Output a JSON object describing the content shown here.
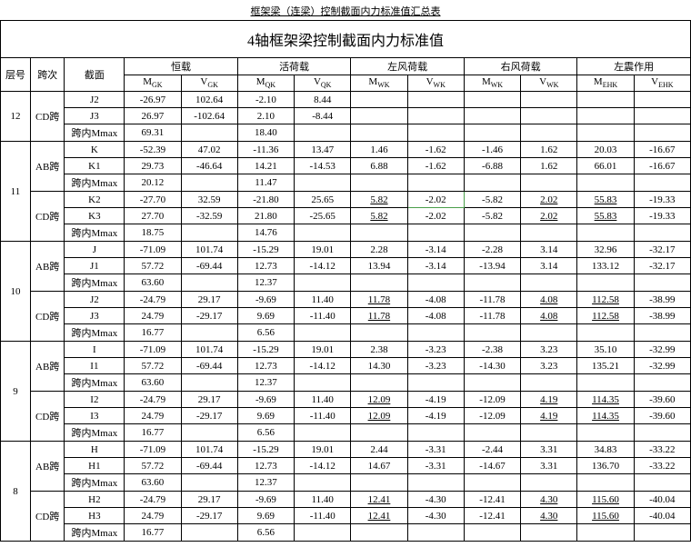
{
  "page_title": "框架梁（连梁）控制截面内力标准值汇总表",
  "main_title": "4轴框架梁控制截面内力标准值",
  "headers": {
    "level": "层号",
    "span": "跨次",
    "section": "截面",
    "groups": [
      "恒载",
      "活荷载",
      "左风荷载",
      "右风荷载",
      "左震作用"
    ],
    "cols": [
      "M",
      "V",
      "M",
      "V",
      "M",
      "V",
      "M",
      "V",
      "M",
      "V"
    ],
    "subs": [
      "GK",
      "GK",
      "QK",
      "QK",
      "WK",
      "WK",
      "WK",
      "WK",
      "EHK",
      "EHK"
    ]
  },
  "blocks": [
    {
      "level": "12",
      "spans": [
        {
          "span": "CD跨",
          "rows": [
            {
              "sec": "J2",
              "v": [
                "-26.97",
                "102.64",
                "-2.10",
                "8.44",
                "",
                "",
                "",
                "",
                "",
                ""
              ]
            },
            {
              "sec": "J3",
              "v": [
                "26.97",
                "-102.64",
                "2.10",
                "-8.44",
                "",
                "",
                "",
                "",
                "",
                ""
              ]
            },
            {
              "sec": "跨内Mmax",
              "v": [
                "69.31",
                "",
                "18.40",
                "",
                "",
                "",
                "",
                "",
                "",
                ""
              ]
            }
          ]
        }
      ]
    },
    {
      "level": "11",
      "spans": [
        {
          "span": "AB跨",
          "rows": [
            {
              "sec": "K",
              "v": [
                "-52.39",
                "47.02",
                "-11.36",
                "13.47",
                "1.46",
                "-1.62",
                "-1.46",
                "1.62",
                "20.03",
                "-16.67"
              ]
            },
            {
              "sec": "K1",
              "v": [
                "29.73",
                "-46.64",
                "14.21",
                "-14.53",
                "6.88",
                "-1.62",
                "-6.88",
                "1.62",
                "66.01",
                "-16.67"
              ]
            },
            {
              "sec": "跨内Mmax",
              "v": [
                "20.12",
                "",
                "11.47",
                "",
                "",
                "",
                "",
                "",
                "",
                ""
              ]
            }
          ]
        },
        {
          "span": "CD跨",
          "rows": [
            {
              "sec": "K2",
              "v": [
                "-27.70",
                "32.59",
                "-21.80",
                "25.65",
                "5.82",
                "-2.02",
                "-5.82",
                "2.02",
                "55.83",
                "-19.33"
              ],
              "u": [
                0,
                0,
                0,
                0,
                1,
                0,
                0,
                1,
                1,
                0
              ],
              "g": [
                0,
                0,
                0,
                0,
                0,
                1,
                0,
                0,
                0,
                0
              ]
            },
            {
              "sec": "K3",
              "v": [
                "27.70",
                "-32.59",
                "21.80",
                "-25.65",
                "5.82",
                "-2.02",
                "-5.82",
                "2.02",
                "55.83",
                "-19.33"
              ],
              "u": [
                0,
                0,
                0,
                0,
                1,
                0,
                0,
                1,
                1,
                0
              ]
            },
            {
              "sec": "跨内Mmax",
              "v": [
                "18.75",
                "",
                "14.76",
                "",
                "",
                "",
                "",
                "",
                "",
                ""
              ]
            }
          ]
        }
      ]
    },
    {
      "level": "10",
      "spans": [
        {
          "span": "AB跨",
          "rows": [
            {
              "sec": "J",
              "v": [
                "-71.09",
                "101.74",
                "-15.29",
                "19.01",
                "2.28",
                "-3.14",
                "-2.28",
                "3.14",
                "32.96",
                "-32.17"
              ]
            },
            {
              "sec": "J1",
              "v": [
                "57.72",
                "-69.44",
                "12.73",
                "-14.12",
                "13.94",
                "-3.14",
                "-13.94",
                "3.14",
                "133.12",
                "-32.17"
              ]
            },
            {
              "sec": "跨内Mmax",
              "v": [
                "63.60",
                "",
                "12.37",
                "",
                "",
                "",
                "",
                "",
                "",
                ""
              ]
            }
          ]
        },
        {
          "span": "CD跨",
          "rows": [
            {
              "sec": "J2",
              "v": [
                "-24.79",
                "29.17",
                "-9.69",
                "11.40",
                "11.78",
                "-4.08",
                "-11.78",
                "4.08",
                "112.58",
                "-38.99"
              ],
              "u": [
                0,
                0,
                0,
                0,
                1,
                0,
                0,
                1,
                1,
                0
              ]
            },
            {
              "sec": "J3",
              "v": [
                "24.79",
                "-29.17",
                "9.69",
                "-11.40",
                "11.78",
                "-4.08",
                "-11.78",
                "4.08",
                "112.58",
                "-38.99"
              ],
              "u": [
                0,
                0,
                0,
                0,
                1,
                0,
                0,
                1,
                1,
                0
              ]
            },
            {
              "sec": "跨内Mmax",
              "v": [
                "16.77",
                "",
                "6.56",
                "",
                "",
                "",
                "",
                "",
                "",
                ""
              ]
            }
          ]
        }
      ]
    },
    {
      "level": "9",
      "spans": [
        {
          "span": "AB跨",
          "rows": [
            {
              "sec": "I",
              "v": [
                "-71.09",
                "101.74",
                "-15.29",
                "19.01",
                "2.38",
                "-3.23",
                "-2.38",
                "3.23",
                "35.10",
                "-32.99"
              ]
            },
            {
              "sec": "I1",
              "v": [
                "57.72",
                "-69.44",
                "12.73",
                "-14.12",
                "14.30",
                "-3.23",
                "-14.30",
                "3.23",
                "135.21",
                "-32.99"
              ]
            },
            {
              "sec": "跨内Mmax",
              "v": [
                "63.60",
                "",
                "12.37",
                "",
                "",
                "",
                "",
                "",
                "",
                ""
              ]
            }
          ]
        },
        {
          "span": "CD跨",
          "rows": [
            {
              "sec": "I2",
              "v": [
                "-24.79",
                "29.17",
                "-9.69",
                "11.40",
                "12.09",
                "-4.19",
                "-12.09",
                "4.19",
                "114.35",
                "-39.60"
              ],
              "u": [
                0,
                0,
                0,
                0,
                1,
                0,
                0,
                1,
                1,
                0
              ]
            },
            {
              "sec": "I3",
              "v": [
                "24.79",
                "-29.17",
                "9.69",
                "-11.40",
                "12.09",
                "-4.19",
                "-12.09",
                "4.19",
                "114.35",
                "-39.60"
              ],
              "u": [
                0,
                0,
                0,
                0,
                1,
                0,
                0,
                1,
                1,
                0
              ]
            },
            {
              "sec": "跨内Mmax",
              "v": [
                "16.77",
                "",
                "6.56",
                "",
                "",
                "",
                "",
                "",
                "",
                ""
              ]
            }
          ]
        }
      ]
    },
    {
      "level": "8",
      "spans": [
        {
          "span": "AB跨",
          "rows": [
            {
              "sec": "H",
              "v": [
                "-71.09",
                "101.74",
                "-15.29",
                "19.01",
                "2.44",
                "-3.31",
                "-2.44",
                "3.31",
                "34.83",
                "-33.22"
              ]
            },
            {
              "sec": "H1",
              "v": [
                "57.72",
                "-69.44",
                "12.73",
                "-14.12",
                "14.67",
                "-3.31",
                "-14.67",
                "3.31",
                "136.70",
                "-33.22"
              ]
            },
            {
              "sec": "跨内Mmax",
              "v": [
                "63.60",
                "",
                "12.37",
                "",
                "",
                "",
                "",
                "",
                "",
                ""
              ]
            }
          ]
        },
        {
          "span": "CD跨",
          "rows": [
            {
              "sec": "H2",
              "v": [
                "-24.79",
                "29.17",
                "-9.69",
                "11.40",
                "12.41",
                "-4.30",
                "-12.41",
                "4.30",
                "115.60",
                "-40.04"
              ],
              "u": [
                0,
                0,
                0,
                0,
                1,
                0,
                0,
                1,
                1,
                0
              ]
            },
            {
              "sec": "H3",
              "v": [
                "24.79",
                "-29.17",
                "9.69",
                "-11.40",
                "12.41",
                "-4.30",
                "-12.41",
                "4.30",
                "115.60",
                "-40.04"
              ],
              "u": [
                0,
                0,
                0,
                0,
                1,
                0,
                0,
                1,
                1,
                0
              ]
            },
            {
              "sec": "跨内Mmax",
              "v": [
                "16.77",
                "",
                "6.56",
                "",
                "",
                "",
                "",
                "",
                "",
                ""
              ]
            }
          ]
        }
      ]
    }
  ]
}
